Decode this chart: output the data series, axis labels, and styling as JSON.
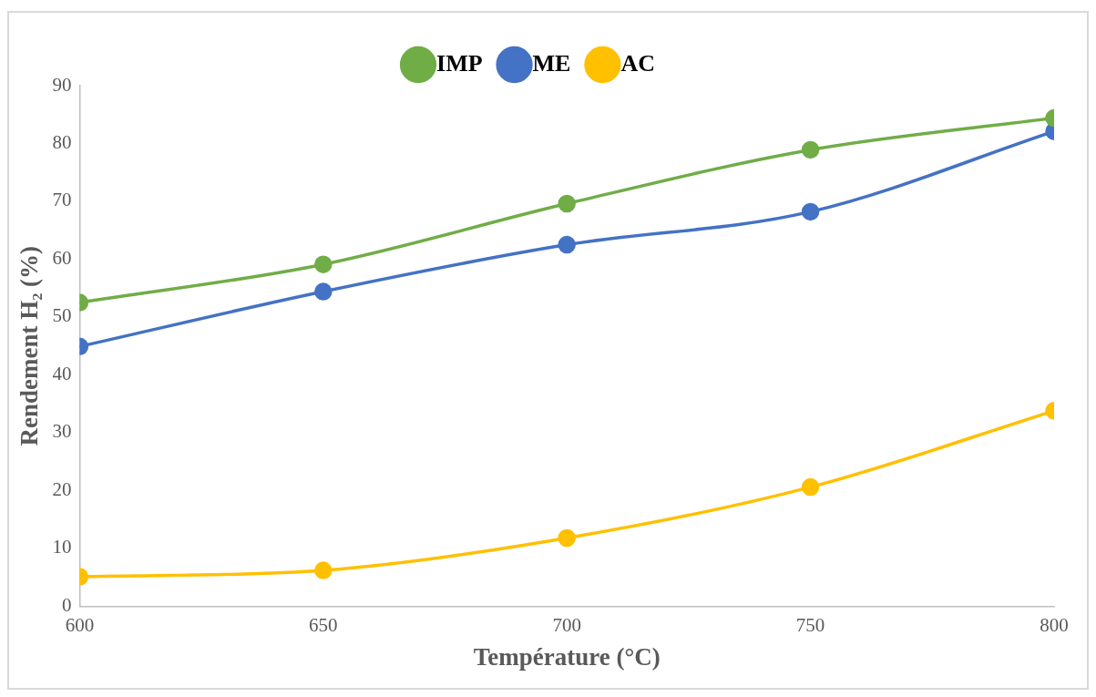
{
  "chart_data": {
    "type": "line",
    "xlabel": "Température (°C)",
    "ylabel": "Rendement H₂ (%)",
    "x": [
      600,
      650,
      700,
      750,
      800
    ],
    "series": [
      {
        "name": "IMP",
        "color": "#70ad47",
        "values": [
          52.5,
          59.1,
          69.6,
          78.9,
          84.4
        ]
      },
      {
        "name": "ME",
        "color": "#4472c4",
        "values": [
          44.9,
          54.4,
          62.5,
          68.2,
          82.1
        ]
      },
      {
        "name": "AC",
        "color": "#ffc000",
        "values": [
          5.1,
          6.2,
          11.8,
          20.6,
          33.8
        ]
      }
    ],
    "xlim": [
      600,
      800
    ],
    "xticks": [
      600,
      650,
      700,
      750,
      800
    ],
    "ylim": [
      0,
      90
    ],
    "yticks": [
      0,
      10,
      20,
      30,
      40,
      50,
      60,
      70,
      80,
      90
    ],
    "grid": false,
    "legend": "top",
    "marker": "circle",
    "line_style": "solid"
  }
}
